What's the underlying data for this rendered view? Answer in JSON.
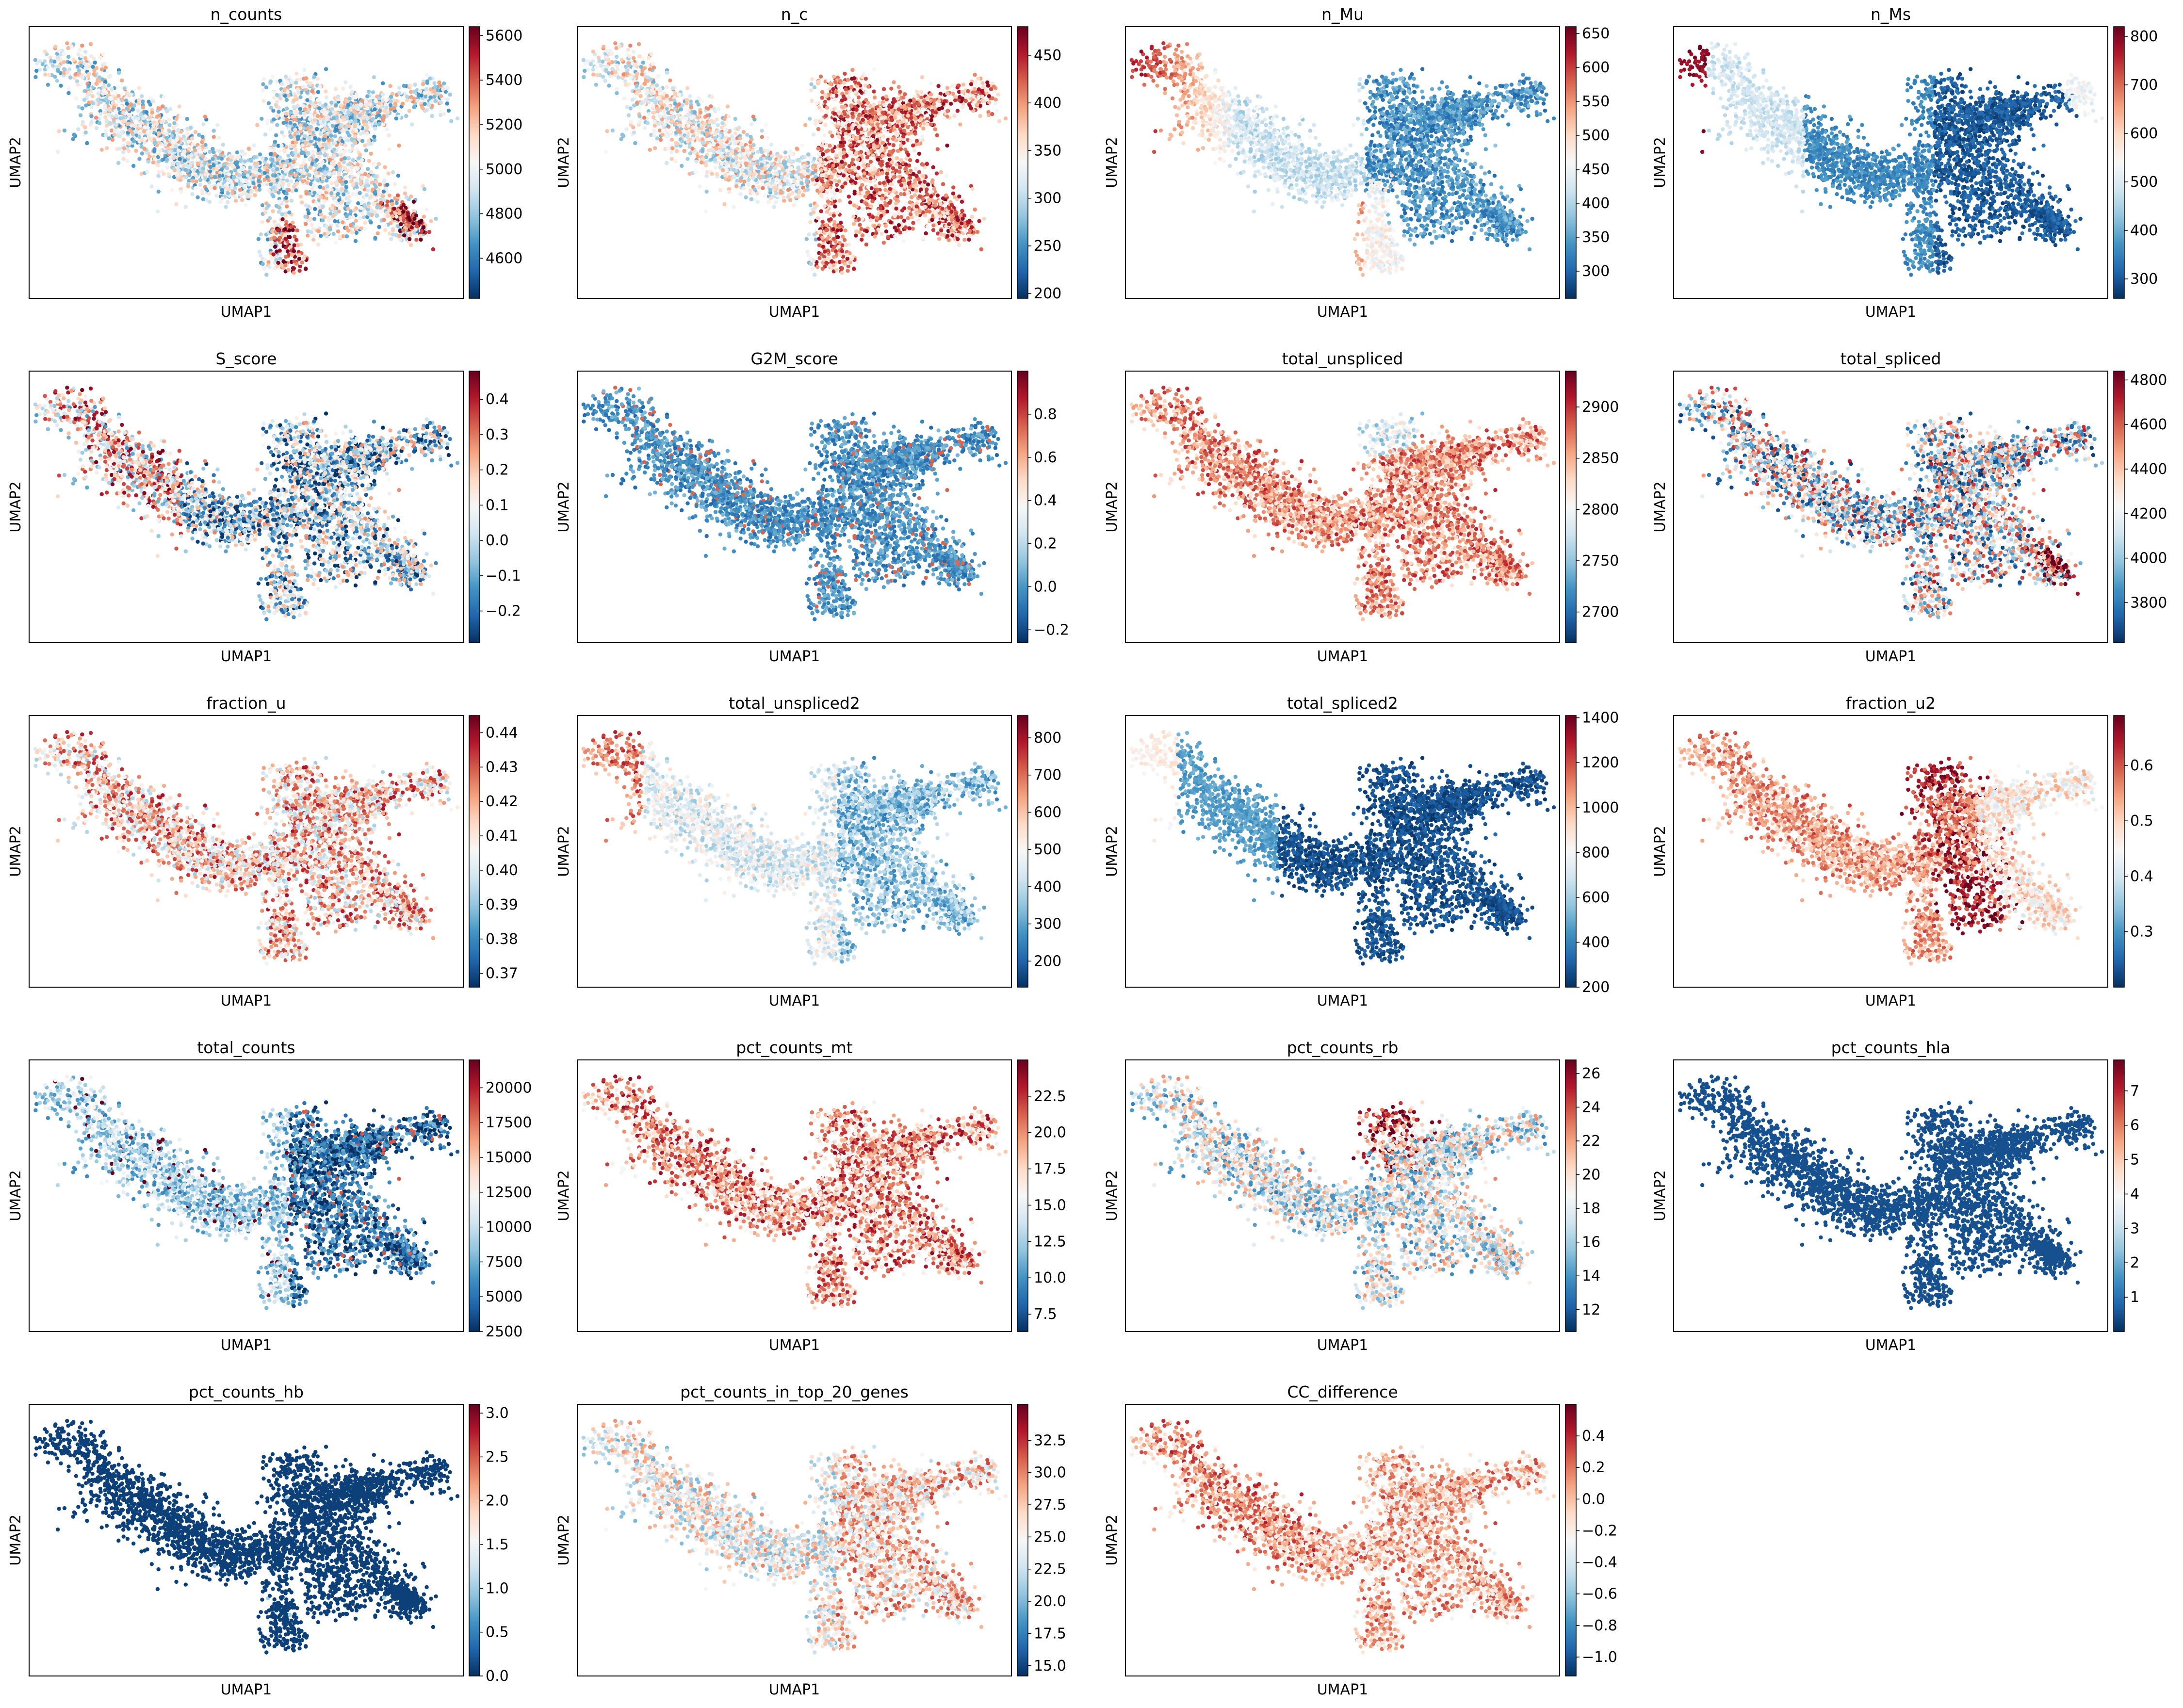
{
  "figure": {
    "type": "scatter",
    "embedding": "UMAP"
  },
  "colormap": {
    "name": "RdBu_r",
    "stops": [
      "#053061",
      "#2166ac",
      "#4393c3",
      "#92c5de",
      "#d1e5f0",
      "#f7f7f7",
      "#fddbc7",
      "#f4a582",
      "#d6604d",
      "#b2182b",
      "#67001f"
    ]
  },
  "chart_data": [
    {
      "type": "scatter",
      "title": "n_counts",
      "xlabel": "UMAP1",
      "ylabel": "UMAP2",
      "colorbar": {
        "range": [
          4420,
          5640
        ],
        "ticks": [
          4600,
          4800,
          5000,
          5200,
          5400,
          5600
        ],
        "labels": [
          "4600",
          "4800",
          "5000",
          "5200",
          "5400",
          "5600"
        ]
      }
    },
    {
      "type": "scatter",
      "title": "n_c",
      "xlabel": "UMAP1",
      "ylabel": "UMAP2",
      "colorbar": {
        "range": [
          195,
          480
        ],
        "ticks": [
          200,
          250,
          300,
          350,
          400,
          450
        ],
        "labels": [
          "200",
          "250",
          "300",
          "350",
          "400",
          "450"
        ]
      }
    },
    {
      "type": "scatter",
      "title": "n_Mu",
      "xlabel": "UMAP1",
      "ylabel": "UMAP2",
      "colorbar": {
        "range": [
          260,
          660
        ],
        "ticks": [
          300,
          350,
          400,
          450,
          500,
          550,
          600,
          650
        ],
        "labels": [
          "300",
          "350",
          "400",
          "450",
          "500",
          "550",
          "600",
          "650"
        ]
      }
    },
    {
      "type": "scatter",
      "title": "n_Ms",
      "xlabel": "UMAP1",
      "ylabel": "UMAP2",
      "colorbar": {
        "range": [
          260,
          820
        ],
        "ticks": [
          300,
          400,
          500,
          600,
          700,
          800
        ],
        "labels": [
          "300",
          "400",
          "500",
          "600",
          "700",
          "800"
        ]
      }
    },
    {
      "type": "scatter",
      "title": "S_score",
      "xlabel": "UMAP1",
      "ylabel": "UMAP2",
      "colorbar": {
        "range": [
          -0.29,
          0.48
        ],
        "ticks": [
          -0.2,
          -0.1,
          0.0,
          0.1,
          0.2,
          0.3,
          0.4
        ],
        "labels": [
          "−0.2",
          "−0.1",
          "0.0",
          "0.1",
          "0.2",
          "0.3",
          "0.4"
        ]
      }
    },
    {
      "type": "scatter",
      "title": "G2M_score",
      "xlabel": "UMAP1",
      "ylabel": "UMAP2",
      "colorbar": {
        "range": [
          -0.26,
          1.0
        ],
        "ticks": [
          -0.2,
          0.0,
          0.2,
          0.4,
          0.6,
          0.8
        ],
        "labels": [
          "−0.2",
          "0.0",
          "0.2",
          "0.4",
          "0.6",
          "0.8"
        ]
      }
    },
    {
      "type": "scatter",
      "title": "total_unspliced",
      "xlabel": "UMAP1",
      "ylabel": "UMAP2",
      "colorbar": {
        "range": [
          2670,
          2935
        ],
        "ticks": [
          2700,
          2750,
          2800,
          2850,
          2900
        ],
        "labels": [
          "2700",
          "2750",
          "2800",
          "2850",
          "2900"
        ]
      }
    },
    {
      "type": "scatter",
      "title": "total_spliced",
      "xlabel": "UMAP1",
      "ylabel": "UMAP2",
      "colorbar": {
        "range": [
          3620,
          4840
        ],
        "ticks": [
          3800,
          4000,
          4200,
          4400,
          4600,
          4800
        ],
        "labels": [
          "3800",
          "4000",
          "4200",
          "4400",
          "4600",
          "4800"
        ]
      }
    },
    {
      "type": "scatter",
      "title": "fraction_u",
      "xlabel": "UMAP1",
      "ylabel": "UMAP2",
      "colorbar": {
        "range": [
          0.366,
          0.445
        ],
        "ticks": [
          0.37,
          0.38,
          0.39,
          0.4,
          0.41,
          0.42,
          0.43,
          0.44
        ],
        "labels": [
          "0.37",
          "0.38",
          "0.39",
          "0.40",
          "0.41",
          "0.42",
          "0.43",
          "0.44"
        ]
      }
    },
    {
      "type": "scatter",
      "title": "total_unspliced2",
      "xlabel": "UMAP1",
      "ylabel": "UMAP2",
      "colorbar": {
        "range": [
          130,
          860
        ],
        "ticks": [
          200,
          300,
          400,
          500,
          600,
          700,
          800
        ],
        "labels": [
          "200",
          "300",
          "400",
          "500",
          "600",
          "700",
          "800"
        ]
      }
    },
    {
      "type": "scatter",
      "title": "total_spliced2",
      "xlabel": "UMAP1",
      "ylabel": "UMAP2",
      "colorbar": {
        "range": [
          200,
          1410
        ],
        "ticks": [
          200,
          400,
          600,
          800,
          1000,
          1200,
          1400
        ],
        "labels": [
          "200",
          "400",
          "600",
          "800",
          "1000",
          "1200",
          "1400"
        ]
      }
    },
    {
      "type": "scatter",
      "title": "fraction_u2",
      "xlabel": "UMAP1",
      "ylabel": "UMAP2",
      "colorbar": {
        "range": [
          0.2,
          0.69
        ],
        "ticks": [
          0.3,
          0.4,
          0.5,
          0.6
        ],
        "labels": [
          "0.3",
          "0.4",
          "0.5",
          "0.6"
        ]
      }
    },
    {
      "type": "scatter",
      "title": "total_counts",
      "xlabel": "UMAP1",
      "ylabel": "UMAP2",
      "colorbar": {
        "range": [
          2500,
          22000
        ],
        "ticks": [
          2500,
          5000,
          7500,
          10000,
          12500,
          15000,
          17500,
          20000
        ],
        "labels": [
          "2500",
          "5000",
          "7500",
          "10000",
          "12500",
          "15000",
          "17500",
          "20000"
        ]
      }
    },
    {
      "type": "scatter",
      "title": "pct_counts_mt",
      "xlabel": "UMAP1",
      "ylabel": "UMAP2",
      "colorbar": {
        "range": [
          6.3,
          25.0
        ],
        "ticks": [
          7.5,
          10.0,
          12.5,
          15.0,
          17.5,
          20.0,
          22.5
        ],
        "labels": [
          "7.5",
          "10.0",
          "12.5",
          "15.0",
          "17.5",
          "20.0",
          "22.5"
        ]
      }
    },
    {
      "type": "scatter",
      "title": "pct_counts_rb",
      "xlabel": "UMAP1",
      "ylabel": "UMAP2",
      "colorbar": {
        "range": [
          10.7,
          26.8
        ],
        "ticks": [
          12,
          14,
          16,
          18,
          20,
          22,
          24,
          26
        ],
        "labels": [
          "12",
          "14",
          "16",
          "18",
          "20",
          "22",
          "24",
          "26"
        ]
      }
    },
    {
      "type": "scatter",
      "title": "pct_counts_hla",
      "xlabel": "UMAP1",
      "ylabel": "UMAP2",
      "colorbar": {
        "range": [
          0.0,
          7.9
        ],
        "ticks": [
          1,
          2,
          3,
          4,
          5,
          6,
          7
        ],
        "labels": [
          "1",
          "2",
          "3",
          "4",
          "5",
          "6",
          "7"
        ]
      }
    },
    {
      "type": "scatter",
      "title": "pct_counts_hb",
      "xlabel": "UMAP1",
      "ylabel": "UMAP2",
      "colorbar": {
        "range": [
          0.0,
          3.1
        ],
        "ticks": [
          0.0,
          0.5,
          1.0,
          1.5,
          2.0,
          2.5,
          3.0
        ],
        "labels": [
          "0.0",
          "0.5",
          "1.0",
          "1.5",
          "2.0",
          "2.5",
          "3.0"
        ]
      }
    },
    {
      "type": "scatter",
      "title": "pct_counts_in_top_20_genes",
      "xlabel": "UMAP1",
      "ylabel": "UMAP2",
      "colorbar": {
        "range": [
          14.2,
          35.3
        ],
        "ticks": [
          15.0,
          17.5,
          20.0,
          22.5,
          25.0,
          27.5,
          30.0,
          32.5
        ],
        "labels": [
          "15.0",
          "17.5",
          "20.0",
          "22.5",
          "25.0",
          "27.5",
          "30.0",
          "32.5"
        ]
      }
    },
    {
      "type": "scatter",
      "title": "CC_difference",
      "xlabel": "UMAP1",
      "ylabel": "UMAP2",
      "colorbar": {
        "range": [
          -1.12,
          0.6
        ],
        "ticks": [
          -1.0,
          -0.8,
          -0.6,
          -0.4,
          -0.2,
          0.0,
          0.2,
          0.4
        ],
        "labels": [
          "−1.0",
          "−0.8",
          "−0.6",
          "−0.4",
          "−0.2",
          "0.0",
          "0.2",
          "0.4"
        ]
      }
    }
  ]
}
